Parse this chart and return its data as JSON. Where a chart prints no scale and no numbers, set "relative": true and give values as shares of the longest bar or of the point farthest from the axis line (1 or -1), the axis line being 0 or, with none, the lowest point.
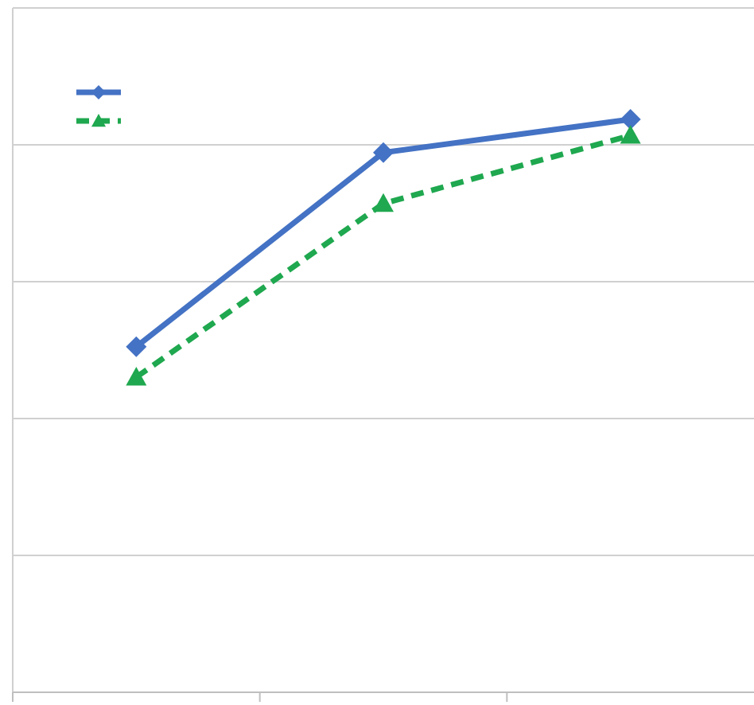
{
  "chart_data": {
    "type": "line",
    "relative": true,
    "categories": [
      null,
      null,
      null
    ],
    "series": [
      {
        "color": "#4472c4",
        "values": [
          0.603,
          0.942,
          1
        ],
        "marker": "diamond",
        "line_style": "solid"
      },
      {
        "color": "#1fa84f",
        "values": [
          0.55,
          0.853,
          0.972
        ],
        "marker": "triangle",
        "line_style": "dashed"
      }
    ],
    "grid": "y"
  }
}
